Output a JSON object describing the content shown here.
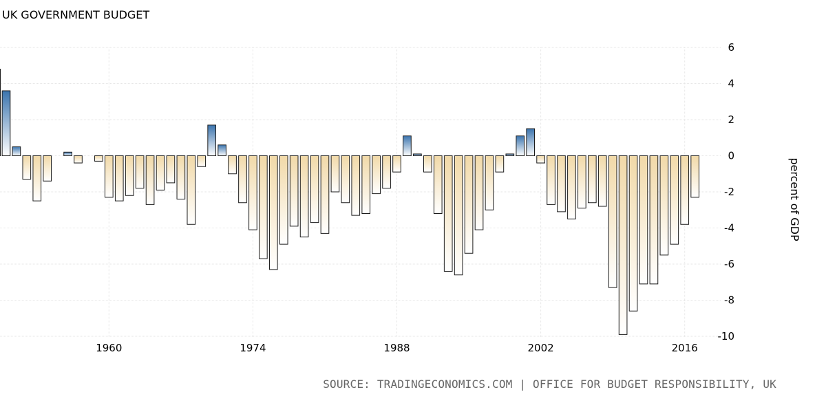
{
  "chart_data": {
    "type": "bar",
    "title": "UK GOVERNMENT BUDGET",
    "ylabel": "percent of GDP",
    "xlabel": "",
    "ylim": [
      -10,
      6
    ],
    "yticks": [
      6,
      4,
      2,
      0,
      -2,
      -4,
      -6,
      -8,
      -10
    ],
    "xticks": [
      1960,
      1974,
      1988,
      2002,
      2016
    ],
    "xlim": [
      1949.4,
      2019.5
    ],
    "grid": true,
    "colors": {
      "positive": "#3a78b4",
      "negative": "#f2ddb2",
      "outline": "#1a1a1a",
      "grid": "#e6e6e6"
    },
    "series": [
      {
        "name": "Government Budget",
        "x": [
          1949,
          1950,
          1951,
          1952,
          1953,
          1954,
          1955,
          1956,
          1957,
          1958,
          1959,
          1960,
          1961,
          1962,
          1963,
          1964,
          1965,
          1966,
          1967,
          1968,
          1969,
          1970,
          1971,
          1972,
          1973,
          1974,
          1975,
          1976,
          1977,
          1978,
          1979,
          1980,
          1981,
          1982,
          1983,
          1984,
          1985,
          1986,
          1987,
          1988,
          1989,
          1990,
          1991,
          1992,
          1993,
          1994,
          1995,
          1996,
          1997,
          1998,
          1999,
          2000,
          2001,
          2002,
          2003,
          2004,
          2005,
          2006,
          2007,
          2008,
          2009,
          2010,
          2011,
          2012,
          2013,
          2014,
          2015,
          2016,
          2017
        ],
        "values": [
          4.8,
          3.6,
          0.5,
          -1.3,
          -2.5,
          -1.4,
          0,
          0.2,
          -0.4,
          0,
          -0.3,
          -2.3,
          -2.5,
          -2.2,
          -1.8,
          -2.7,
          -1.9,
          -1.5,
          -2.4,
          -3.8,
          -0.6,
          1.7,
          0.6,
          -1.0,
          -2.6,
          -4.1,
          -5.7,
          -6.3,
          -4.9,
          -3.9,
          -4.5,
          -3.7,
          -4.3,
          -2.0,
          -2.6,
          -3.3,
          -3.2,
          -2.1,
          -1.8,
          -0.9,
          1.1,
          0.1,
          -0.9,
          -3.2,
          -6.4,
          -6.6,
          -5.4,
          -4.1,
          -3.0,
          -0.9,
          0.1,
          1.1,
          1.5,
          -0.4,
          -2.7,
          -3.1,
          -3.5,
          -2.9,
          -2.6,
          -2.8,
          -7.3,
          -9.9,
          -8.6,
          -7.1,
          -7.1,
          -5.5,
          -4.9,
          -3.8,
          -2.3
        ]
      }
    ]
  },
  "source": "SOURCE: TRADINGECONOMICS.COM | OFFICE FOR BUDGET RESPONSIBILITY, UK"
}
